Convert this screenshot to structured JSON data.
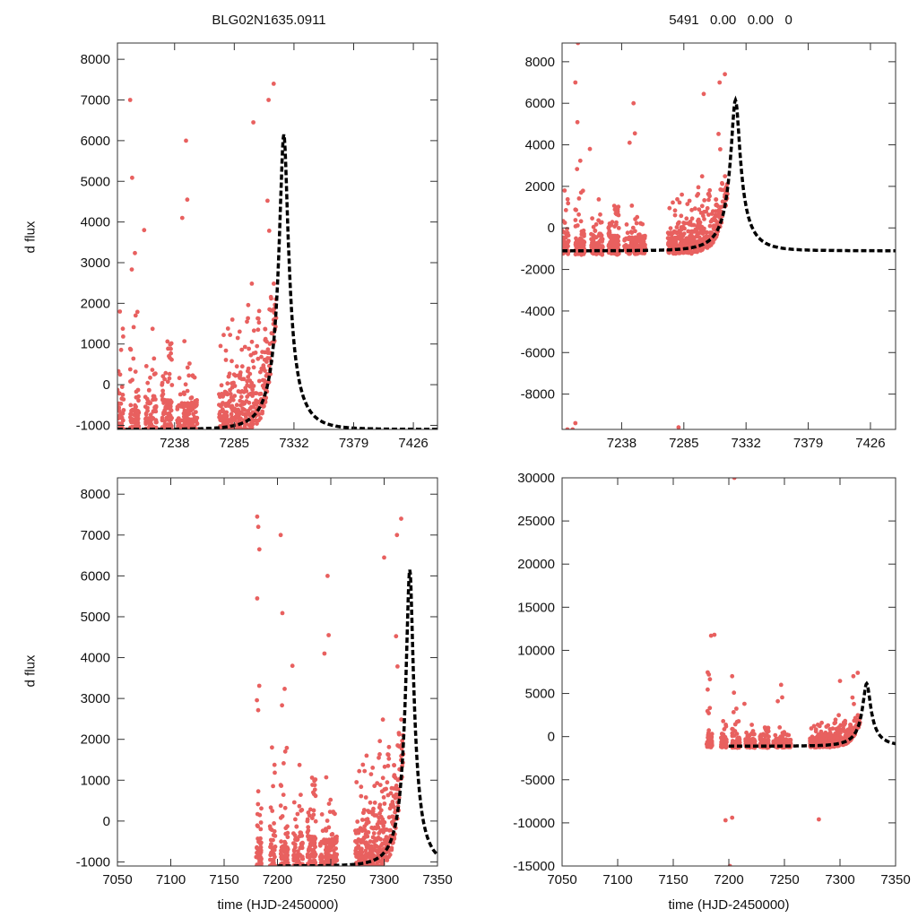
{
  "figure": {
    "title_left": "BLG02N1635.0911",
    "title_right": "5491   0.00   0.00   0",
    "ylabel": "d flux",
    "xlabel": "time (HJD-2450000)"
  },
  "model": {
    "description": "dashed black Paczynski-like fit curve",
    "t0": 7324,
    "peak_dflux": 6150,
    "baseline_dflux": -1100,
    "tE": 20
  },
  "chart_data": [
    {
      "type": "scatter",
      "title": "BLG02N1635.0911",
      "xlabel": "",
      "ylabel": "d flux",
      "xlim": [
        7193,
        7445
      ],
      "ylim": [
        -1100,
        8400
      ],
      "xticks": [
        7238,
        7285,
        7332,
        7379,
        7426
      ],
      "yticks": [
        -1000,
        0,
        1000,
        2000,
        3000,
        4000,
        5000,
        6000,
        7000,
        8000
      ],
      "series": [
        {
          "name": "data",
          "color": "#e8605f"
        },
        {
          "name": "fit",
          "color": "#000000",
          "style": "dashed"
        }
      ]
    },
    {
      "type": "scatter",
      "title": "5491   0.00   0.00   0",
      "xlabel": "",
      "ylabel": "",
      "xlim": [
        7193,
        7445
      ],
      "ylim": [
        -9700,
        8900
      ],
      "xticks": [
        7238,
        7285,
        7332,
        7379,
        7426
      ],
      "yticks": [
        -8000,
        -6000,
        -4000,
        -2000,
        0,
        2000,
        4000,
        6000,
        8000
      ],
      "series": [
        {
          "name": "data",
          "color": "#e8605f"
        },
        {
          "name": "fit",
          "color": "#000000",
          "style": "dashed"
        }
      ]
    },
    {
      "type": "scatter",
      "title": "",
      "xlabel": "time (HJD-2450000)",
      "ylabel": "d flux",
      "xlim": [
        7050,
        7350
      ],
      "ylim": [
        -1100,
        8400
      ],
      "xticks": [
        7050,
        7100,
        7150,
        7200,
        7250,
        7300,
        7350
      ],
      "yticks": [
        -1000,
        0,
        1000,
        2000,
        3000,
        4000,
        5000,
        6000,
        7000,
        8000
      ],
      "series": [
        {
          "name": "data",
          "color": "#e8605f"
        },
        {
          "name": "fit",
          "color": "#000000",
          "style": "dashed"
        }
      ]
    },
    {
      "type": "scatter",
      "title": "",
      "xlabel": "time (HJD-2450000)",
      "ylabel": "",
      "xlim": [
        7050,
        7350
      ],
      "ylim": [
        -15000,
        30000
      ],
      "xticks": [
        7050,
        7100,
        7150,
        7200,
        7250,
        7300,
        7350
      ],
      "yticks": [
        -15000,
        -10000,
        -5000,
        0,
        5000,
        10000,
        15000,
        20000,
        25000,
        30000
      ],
      "series": [
        {
          "name": "data",
          "color": "#e8605f"
        },
        {
          "name": "fit",
          "color": "#000000",
          "style": "dashed"
        }
      ]
    }
  ]
}
